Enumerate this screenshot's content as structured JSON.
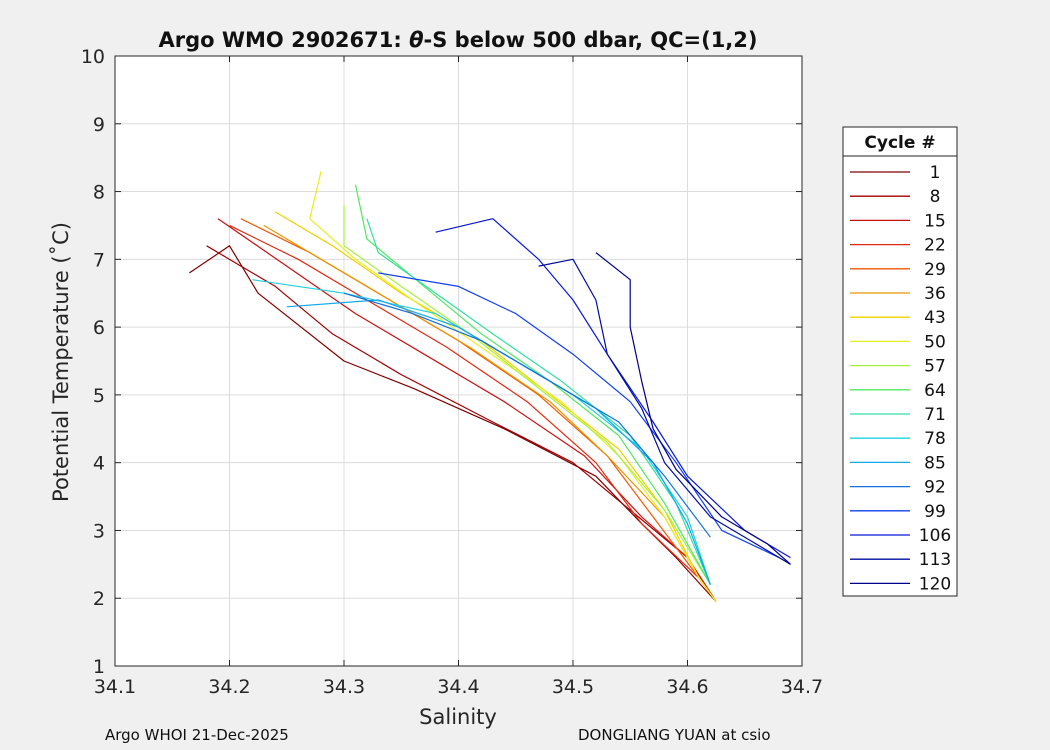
{
  "chart_data": {
    "type": "line",
    "title_prefix": "Argo WMO 2902671: ",
    "title_theta": "θ",
    "title_suffix": "-S below 500 dbar,  QC=(1,2)",
    "xlabel": "Salinity",
    "ylabel": "Potential Temperature (˚C)",
    "xlim": [
      34.1,
      34.7
    ],
    "ylim": [
      1,
      10
    ],
    "xticks": [
      "34.1",
      "34.2",
      "34.3",
      "34.4",
      "34.5",
      "34.6",
      "34.7"
    ],
    "yticks": [
      "1",
      "2",
      "3",
      "4",
      "5",
      "6",
      "7",
      "8",
      "9",
      "10"
    ],
    "grid": true,
    "legend": {
      "title": "Cycle #",
      "placement": "outside-right",
      "entries": [
        {
          "label": "1",
          "color": "#800000"
        },
        {
          "label": "8",
          "color": "#a00000"
        },
        {
          "label": "15",
          "color": "#c81010"
        },
        {
          "label": "22",
          "color": "#e02a10"
        },
        {
          "label": "29",
          "color": "#f05a00"
        },
        {
          "label": "36",
          "color": "#e89600"
        },
        {
          "label": "43",
          "color": "#f0d000"
        },
        {
          "label": "50",
          "color": "#e6f020"
        },
        {
          "label": "57",
          "color": "#a8f040"
        },
        {
          "label": "64",
          "color": "#50e860"
        },
        {
          "label": "71",
          "color": "#30e0a0"
        },
        {
          "label": "78",
          "color": "#20d0e0"
        },
        {
          "label": "85",
          "color": "#10a8f0"
        },
        {
          "label": "92",
          "color": "#1070e0"
        },
        {
          "label": "99",
          "color": "#1040f0"
        },
        {
          "label": "106",
          "color": "#0818d8"
        },
        {
          "label": "113",
          "color": "#000ca0"
        },
        {
          "label": "120",
          "color": "#00008c"
        }
      ]
    },
    "series": [
      {
        "name": "1",
        "color": "#800000",
        "points": [
          [
            34.165,
            6.8
          ],
          [
            34.2,
            7.2
          ],
          [
            34.225,
            6.5
          ],
          [
            34.3,
            5.5
          ],
          [
            34.36,
            5.1
          ],
          [
            34.44,
            4.5
          ],
          [
            34.52,
            3.8
          ],
          [
            34.56,
            3.1
          ],
          [
            34.59,
            2.6
          ],
          [
            34.625,
            1.95
          ]
        ]
      },
      {
        "name": "8",
        "color": "#a00000",
        "points": [
          [
            34.18,
            7.2
          ],
          [
            34.24,
            6.6
          ],
          [
            34.29,
            5.9
          ],
          [
            34.35,
            5.3
          ],
          [
            34.43,
            4.6
          ],
          [
            34.5,
            4.0
          ],
          [
            34.55,
            3.3
          ],
          [
            34.6,
            2.6
          ],
          [
            34.625,
            1.95
          ]
        ]
      },
      {
        "name": "15",
        "color": "#c81010",
        "points": [
          [
            34.19,
            7.6
          ],
          [
            34.25,
            6.9
          ],
          [
            34.31,
            6.2
          ],
          [
            34.37,
            5.6
          ],
          [
            34.44,
            4.9
          ],
          [
            34.51,
            4.1
          ],
          [
            34.56,
            3.2
          ],
          [
            34.6,
            2.6
          ],
          [
            34.625,
            1.95
          ]
        ]
      },
      {
        "name": "22",
        "color": "#e02a10",
        "points": [
          [
            34.2,
            7.5
          ],
          [
            34.26,
            7.0
          ],
          [
            34.32,
            6.4
          ],
          [
            34.39,
            5.7
          ],
          [
            34.46,
            4.9
          ],
          [
            34.52,
            4.0
          ],
          [
            34.56,
            3.1
          ],
          [
            34.61,
            2.3
          ],
          [
            34.625,
            1.95
          ]
        ]
      },
      {
        "name": "29",
        "color": "#f05a00",
        "points": [
          [
            34.21,
            7.6
          ],
          [
            34.27,
            7.1
          ],
          [
            34.33,
            6.5
          ],
          [
            34.4,
            5.8
          ],
          [
            34.47,
            5.0
          ],
          [
            34.53,
            4.1
          ],
          [
            34.57,
            3.2
          ],
          [
            34.61,
            2.3
          ],
          [
            34.625,
            1.95
          ]
        ]
      },
      {
        "name": "36",
        "color": "#e89600",
        "points": [
          [
            34.23,
            7.5
          ],
          [
            34.28,
            7.0
          ],
          [
            34.34,
            6.4
          ],
          [
            34.41,
            5.7
          ],
          [
            34.48,
            4.9
          ],
          [
            34.53,
            4.1
          ],
          [
            34.58,
            3.2
          ],
          [
            34.61,
            2.3
          ],
          [
            34.625,
            1.95
          ]
        ]
      },
      {
        "name": "43",
        "color": "#f0d000",
        "points": [
          [
            34.24,
            7.7
          ],
          [
            34.29,
            7.2
          ],
          [
            34.35,
            6.5
          ],
          [
            34.42,
            5.8
          ],
          [
            34.48,
            5.0
          ],
          [
            34.54,
            4.2
          ],
          [
            34.58,
            3.3
          ],
          [
            34.61,
            2.3
          ],
          [
            34.625,
            1.95
          ]
        ]
      },
      {
        "name": "50",
        "color": "#e6f020",
        "points": [
          [
            34.28,
            8.3
          ],
          [
            34.27,
            7.6
          ],
          [
            34.31,
            7.0
          ],
          [
            34.36,
            6.4
          ],
          [
            34.42,
            5.7
          ],
          [
            34.49,
            4.9
          ],
          [
            34.54,
            4.1
          ],
          [
            34.58,
            3.2
          ],
          [
            34.61,
            2.3
          ],
          [
            34.625,
            1.95
          ]
        ]
      },
      {
        "name": "57",
        "color": "#a8f040",
        "points": [
          [
            34.3,
            7.8
          ],
          [
            34.3,
            7.2
          ],
          [
            34.35,
            6.6
          ],
          [
            34.41,
            5.9
          ],
          [
            34.47,
            5.1
          ],
          [
            34.53,
            4.3
          ],
          [
            34.58,
            3.3
          ],
          [
            34.62,
            2.2
          ]
        ]
      },
      {
        "name": "64",
        "color": "#50e860",
        "points": [
          [
            34.31,
            8.1
          ],
          [
            34.32,
            7.3
          ],
          [
            34.37,
            6.6
          ],
          [
            34.42,
            5.9
          ],
          [
            34.48,
            5.2
          ],
          [
            34.54,
            4.4
          ],
          [
            34.58,
            3.4
          ],
          [
            34.62,
            2.2
          ]
        ]
      },
      {
        "name": "71",
        "color": "#30e0a0",
        "points": [
          [
            34.32,
            7.6
          ],
          [
            34.33,
            7.1
          ],
          [
            34.38,
            6.5
          ],
          [
            34.43,
            5.9
          ],
          [
            34.49,
            5.2
          ],
          [
            34.55,
            4.4
          ],
          [
            34.59,
            3.4
          ],
          [
            34.62,
            2.2
          ]
        ]
      },
      {
        "name": "78",
        "color": "#20d0e0",
        "points": [
          [
            34.22,
            6.7
          ],
          [
            34.3,
            6.5
          ],
          [
            34.38,
            6.2
          ],
          [
            34.44,
            5.6
          ],
          [
            34.5,
            5.0
          ],
          [
            34.56,
            4.2
          ],
          [
            34.6,
            3.2
          ],
          [
            34.62,
            2.2
          ]
        ]
      },
      {
        "name": "85",
        "color": "#10a8f0",
        "points": [
          [
            34.25,
            6.3
          ],
          [
            34.33,
            6.4
          ],
          [
            34.4,
            6.0
          ],
          [
            34.46,
            5.4
          ],
          [
            34.52,
            4.8
          ],
          [
            34.57,
            4.0
          ],
          [
            34.6,
            3.1
          ],
          [
            34.62,
            2.2
          ]
        ]
      },
      {
        "name": "92",
        "color": "#1070e0",
        "points": [
          [
            34.3,
            6.5
          ],
          [
            34.36,
            6.2
          ],
          [
            34.42,
            5.8
          ],
          [
            34.48,
            5.2
          ],
          [
            34.54,
            4.6
          ],
          [
            34.58,
            3.8
          ],
          [
            34.62,
            2.9
          ]
        ]
      },
      {
        "name": "99",
        "color": "#1040f0",
        "points": [
          [
            34.33,
            6.8
          ],
          [
            34.4,
            6.6
          ],
          [
            34.45,
            6.2
          ],
          [
            34.5,
            5.6
          ],
          [
            34.55,
            4.9
          ],
          [
            34.59,
            4.0
          ],
          [
            34.63,
            3.0
          ],
          [
            34.68,
            2.6
          ]
        ]
      },
      {
        "name": "106",
        "color": "#0818d8",
        "points": [
          [
            34.38,
            7.4
          ],
          [
            34.43,
            7.6
          ],
          [
            34.47,
            7.0
          ],
          [
            34.5,
            6.4
          ],
          [
            34.53,
            5.6
          ],
          [
            34.57,
            4.6
          ],
          [
            34.6,
            3.8
          ],
          [
            34.65,
            3.0
          ],
          [
            34.69,
            2.6
          ]
        ]
      },
      {
        "name": "113",
        "color": "#000ca0",
        "points": [
          [
            34.47,
            6.9
          ],
          [
            34.5,
            7.0
          ],
          [
            34.52,
            6.4
          ],
          [
            34.53,
            5.6
          ],
          [
            34.56,
            4.8
          ],
          [
            34.58,
            4.0
          ],
          [
            34.62,
            3.2
          ],
          [
            34.66,
            2.8
          ],
          [
            34.69,
            2.5
          ]
        ]
      },
      {
        "name": "120",
        "color": "#00008c",
        "points": [
          [
            34.52,
            7.1
          ],
          [
            34.55,
            6.7
          ],
          [
            34.55,
            6.0
          ],
          [
            34.56,
            5.2
          ],
          [
            34.57,
            4.5
          ],
          [
            34.59,
            3.9
          ],
          [
            34.63,
            3.2
          ],
          [
            34.67,
            2.8
          ],
          [
            34.69,
            2.5
          ]
        ]
      }
    ]
  },
  "footer": {
    "left": "Argo WHOI 21-Dec-2025",
    "right": "DONGLIANG YUAN at csio"
  }
}
